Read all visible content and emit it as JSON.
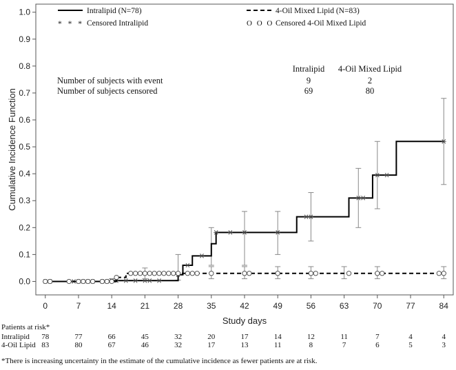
{
  "chart_data": {
    "type": "line",
    "title": "",
    "xlabel": "Study days",
    "ylabel": "Cumulative Incidence Function",
    "xlim": [
      -2,
      86
    ],
    "ylim": [
      -0.05,
      1.03
    ],
    "xticks": [
      0,
      7,
      14,
      21,
      28,
      35,
      42,
      49,
      56,
      63,
      70,
      77,
      84
    ],
    "yticks": [
      0.0,
      0.1,
      0.2,
      0.3,
      0.4,
      0.5,
      0.6,
      0.7,
      0.8,
      0.9,
      1.0
    ],
    "ytick_labels": [
      "0.0",
      "0.1",
      "0.2",
      "0.3",
      "0.4",
      "0.5",
      "0.6",
      "0.7",
      "0.8",
      "0.9",
      "1.0"
    ],
    "legend": {
      "placement": "top",
      "entries": [
        {
          "label": "Intralipid (N=78)",
          "symbol": "solid-line"
        },
        {
          "label": "4-Oil Mixed Lipid (N=83)",
          "symbol": "dashed-line"
        },
        {
          "label": "Censored Intralipid",
          "symbol": "star",
          "marks": "* * *"
        },
        {
          "label": "Censored 4-Oil Mixed Lipid",
          "symbol": "circle",
          "marks": "O O O"
        }
      ]
    },
    "series": [
      {
        "name": "Intralipid (N=78)",
        "style": "solid",
        "step_x": [
          0,
          14,
          25,
          28,
          29,
          31,
          35,
          36,
          53,
          64,
          69,
          74,
          84
        ],
        "step_y": [
          0,
          0.003,
          0.003,
          0.025,
          0.06,
          0.095,
          0.14,
          0.182,
          0.24,
          0.31,
          0.395,
          0.52,
          0.52
        ],
        "censored_x": [
          0,
          1,
          6,
          7,
          8,
          9,
          10,
          12,
          13,
          14,
          15,
          17,
          19,
          21,
          22,
          24,
          28,
          30,
          33,
          36,
          39,
          42,
          49,
          55,
          56,
          66,
          67,
          70,
          72,
          84
        ],
        "ci": [
          {
            "x": 14,
            "lo": 0.0,
            "hi": 0.01
          },
          {
            "x": 28,
            "lo": 0.005,
            "hi": 0.1
          },
          {
            "x": 35,
            "lo": 0.06,
            "hi": 0.2
          },
          {
            "x": 42,
            "lo": 0.06,
            "hi": 0.26
          },
          {
            "x": 49,
            "lo": 0.1,
            "hi": 0.26
          },
          {
            "x": 56,
            "lo": 0.15,
            "hi": 0.33
          },
          {
            "x": 66,
            "lo": 0.2,
            "hi": 0.42
          },
          {
            "x": 70,
            "lo": 0.27,
            "hi": 0.52
          },
          {
            "x": 84,
            "lo": 0.36,
            "hi": 0.68
          }
        ]
      },
      {
        "name": "4-Oil Mixed Lipid (N=83)",
        "style": "dashed",
        "step_x": [
          0,
          15,
          17,
          84
        ],
        "step_y": [
          0,
          0.015,
          0.03,
          0.03
        ],
        "censored_x": [
          0,
          1,
          5,
          7,
          8,
          9,
          10,
          12,
          13,
          14,
          15,
          18,
          19,
          20,
          21,
          22,
          23,
          24,
          25,
          26,
          27,
          28,
          30,
          31,
          32,
          35,
          42,
          43,
          49,
          56,
          57,
          64,
          70,
          71,
          83,
          84
        ],
        "ci": [
          {
            "x": 21,
            "lo": 0.01,
            "hi": 0.05
          },
          {
            "x": 35,
            "lo": 0.01,
            "hi": 0.055
          },
          {
            "x": 42,
            "lo": 0.01,
            "hi": 0.055
          },
          {
            "x": 49,
            "lo": 0.01,
            "hi": 0.055
          },
          {
            "x": 56,
            "lo": 0.01,
            "hi": 0.055
          },
          {
            "x": 63,
            "lo": 0.01,
            "hi": 0.055
          },
          {
            "x": 70,
            "lo": 0.01,
            "hi": 0.055
          },
          {
            "x": 84,
            "lo": 0.01,
            "hi": 0.055
          }
        ]
      }
    ]
  },
  "summary_table": {
    "col_headers": [
      "Intralipid",
      "4-Oil Mixed Lipid"
    ],
    "rows": [
      {
        "label": "Number of subjects with event",
        "values": [
          "9",
          "2"
        ]
      },
      {
        "label": "Number of subjects censored",
        "values": [
          "69",
          "80"
        ]
      }
    ]
  },
  "risk_table": {
    "title": "Patients at risk*",
    "times": [
      0,
      7,
      14,
      21,
      28,
      35,
      42,
      49,
      56,
      63,
      70,
      77,
      84
    ],
    "rows": [
      {
        "label": "Intralipid",
        "values": [
          "78",
          "77",
          "66",
          "45",
          "32",
          "20",
          "17",
          "14",
          "12",
          "11",
          "7",
          "4",
          "4"
        ]
      },
      {
        "label": "4-Oil Lipid",
        "values": [
          "83",
          "80",
          "67",
          "46",
          "32",
          "17",
          "13",
          "11",
          "8",
          "7",
          "6",
          "5",
          "3"
        ]
      }
    ]
  },
  "footnote": "*There is increasing uncertainty in the estimate of the cumulative incidence as fewer patients are at risk."
}
